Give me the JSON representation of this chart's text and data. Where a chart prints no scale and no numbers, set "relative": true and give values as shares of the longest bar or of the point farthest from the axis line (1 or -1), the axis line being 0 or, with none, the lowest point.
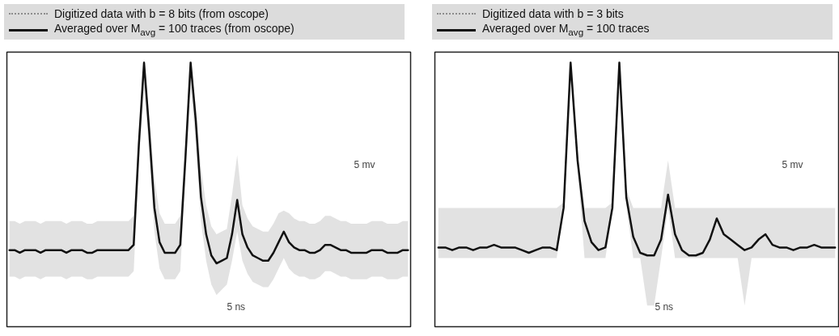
{
  "chart_data": [
    {
      "type": "line",
      "relative": true,
      "legend": "top",
      "grid": false,
      "categories": [
        null,
        null,
        null,
        null,
        null,
        null,
        null,
        null,
        null,
        null,
        null,
        null,
        null,
        null,
        null,
        null,
        null,
        null,
        null,
        null,
        null,
        null,
        null,
        null,
        null,
        null,
        null,
        null,
        null,
        null,
        null,
        null,
        null,
        null,
        null,
        null,
        null,
        null,
        null,
        null,
        null,
        null,
        null,
        null,
        null,
        null,
        null,
        null,
        null,
        null,
        null,
        null,
        null,
        null,
        null,
        null,
        null,
        null,
        null,
        null,
        null,
        null,
        null,
        null,
        null,
        null,
        null,
        null,
        null,
        null,
        null,
        null,
        null,
        null,
        null,
        null,
        null,
        null
      ],
      "annotations": [
        "5 mv",
        "5 ns"
      ],
      "series": [
        {
          "name": "Digitized data with b = 8 bits (from oscope)",
          "color": "#8c8c8c",
          "line_style": "dotted",
          "values": [
            null,
            null,
            null,
            null,
            null,
            null,
            null,
            null,
            null,
            null,
            null,
            null,
            null,
            null,
            null,
            null,
            null,
            null,
            null,
            null,
            null,
            null,
            null,
            null,
            null,
            null,
            null,
            null,
            null,
            null,
            null,
            null,
            null,
            null,
            null,
            null,
            null,
            null,
            null,
            null,
            null,
            null,
            null,
            null,
            null,
            null,
            null,
            null,
            null,
            null,
            null,
            null,
            null,
            null,
            null,
            null,
            null,
            null,
            null,
            null,
            null,
            null,
            null,
            null,
            null,
            null,
            null,
            null,
            null,
            null,
            null,
            null,
            null,
            null,
            null,
            null,
            null,
            null
          ],
          "lower": [
            0.19,
            0.19,
            0.18,
            0.19,
            0.19,
            0.19,
            0.18,
            0.19,
            0.19,
            0.19,
            0.19,
            0.18,
            0.19,
            0.19,
            0.19,
            0.18,
            0.18,
            0.19,
            0.19,
            0.19,
            0.19,
            0.19,
            0.19,
            0.19,
            0.21,
            0.62,
            0.9,
            0.66,
            0.36,
            0.22,
            0.18,
            0.18,
            0.18,
            0.21,
            0.57,
            0.9,
            0.7,
            0.4,
            0.25,
            0.16,
            0.12,
            0.14,
            0.16,
            0.25,
            0.36,
            0.25,
            0.2,
            0.17,
            0.16,
            0.15,
            0.15,
            0.18,
            0.22,
            0.26,
            0.22,
            0.2,
            0.19,
            0.19,
            0.18,
            0.18,
            0.19,
            0.21,
            0.21,
            0.2,
            0.19,
            0.19,
            0.18,
            0.18,
            0.18,
            0.18,
            0.19,
            0.19,
            0.19,
            0.18,
            0.18,
            0.18,
            0.19,
            0.19
          ],
          "upper": [
            0.4,
            0.4,
            0.39,
            0.4,
            0.4,
            0.4,
            0.39,
            0.4,
            0.4,
            0.4,
            0.4,
            0.39,
            0.4,
            0.4,
            0.4,
            0.39,
            0.39,
            0.4,
            0.4,
            0.4,
            0.4,
            0.4,
            0.4,
            0.4,
            0.42,
            0.74,
            1.0,
            0.8,
            0.56,
            0.43,
            0.39,
            0.39,
            0.39,
            0.42,
            0.7,
            1.0,
            0.84,
            0.6,
            0.46,
            0.38,
            0.35,
            0.36,
            0.37,
            0.5,
            0.65,
            0.46,
            0.41,
            0.38,
            0.37,
            0.36,
            0.36,
            0.39,
            0.43,
            0.44,
            0.43,
            0.41,
            0.4,
            0.4,
            0.39,
            0.39,
            0.4,
            0.42,
            0.42,
            0.41,
            0.4,
            0.4,
            0.39,
            0.39,
            0.39,
            0.39,
            0.4,
            0.4,
            0.4,
            0.39,
            0.39,
            0.39,
            0.4,
            0.4
          ]
        },
        {
          "name": "Averaged over M$_{avg}$ = 100 traces (from oscope)",
          "color": "#111111",
          "line_style": "solid",
          "values": [
            0.29,
            0.29,
            0.28,
            0.29,
            0.29,
            0.29,
            0.28,
            0.29,
            0.29,
            0.29,
            0.29,
            0.28,
            0.29,
            0.29,
            0.29,
            0.28,
            0.28,
            0.29,
            0.29,
            0.29,
            0.29,
            0.29,
            0.29,
            0.29,
            0.31,
            0.69,
            1.0,
            0.74,
            0.45,
            0.32,
            0.28,
            0.28,
            0.28,
            0.31,
            0.64,
            1.0,
            0.78,
            0.49,
            0.35,
            0.27,
            0.24,
            0.25,
            0.26,
            0.35,
            0.48,
            0.35,
            0.3,
            0.27,
            0.26,
            0.25,
            0.25,
            0.28,
            0.32,
            0.36,
            0.32,
            0.3,
            0.29,
            0.29,
            0.28,
            0.28,
            0.29,
            0.31,
            0.31,
            0.3,
            0.29,
            0.29,
            0.28,
            0.28,
            0.28,
            0.28,
            0.29,
            0.29,
            0.29,
            0.28,
            0.28,
            0.28,
            0.29,
            0.29
          ]
        }
      ]
    },
    {
      "type": "line",
      "relative": true,
      "legend": "top",
      "grid": false,
      "categories": [
        null,
        null,
        null,
        null,
        null,
        null,
        null,
        null,
        null,
        null,
        null,
        null,
        null,
        null,
        null,
        null,
        null,
        null,
        null,
        null,
        null,
        null,
        null,
        null,
        null,
        null,
        null,
        null,
        null,
        null,
        null,
        null,
        null,
        null,
        null,
        null,
        null,
        null,
        null,
        null,
        null,
        null,
        null,
        null,
        null,
        null,
        null,
        null,
        null,
        null,
        null,
        null,
        null,
        null,
        null,
        null,
        null,
        null
      ],
      "annotations": [
        "5 mv",
        "5 ns"
      ],
      "series": [
        {
          "name": "Digitized data with b = 3 bits",
          "color": "#8c8c8c",
          "line_style": "dotted",
          "values": [
            null,
            null,
            null,
            null,
            null,
            null,
            null,
            null,
            null,
            null,
            null,
            null,
            null,
            null,
            null,
            null,
            null,
            null,
            null,
            null,
            null,
            null,
            null,
            null,
            null,
            null,
            null,
            null,
            null,
            null,
            null,
            null,
            null,
            null,
            null,
            null,
            null,
            null,
            null,
            null,
            null,
            null,
            null,
            null,
            null,
            null,
            null,
            null,
            null,
            null,
            null,
            null,
            null,
            null,
            null,
            null,
            null,
            null
          ],
          "lower": [
            0.26,
            0.26,
            0.26,
            0.26,
            0.26,
            0.26,
            0.26,
            0.26,
            0.26,
            0.26,
            0.26,
            0.26,
            0.26,
            0.26,
            0.26,
            0.26,
            0.26,
            0.26,
            0.44,
            0.96,
            0.6,
            0.26,
            0.26,
            0.26,
            0.26,
            0.44,
            0.96,
            0.46,
            0.26,
            0.26,
            0.08,
            0.08,
            0.26,
            0.45,
            0.26,
            0.26,
            0.26,
            0.26,
            0.26,
            0.26,
            0.26,
            0.26,
            0.26,
            0.26,
            0.08,
            0.26,
            0.26,
            0.26,
            0.26,
            0.26,
            0.26,
            0.26,
            0.26,
            0.26,
            0.26,
            0.26,
            0.26,
            0.26
          ],
          "upper": [
            0.45,
            0.45,
            0.45,
            0.45,
            0.45,
            0.45,
            0.45,
            0.45,
            0.45,
            0.45,
            0.45,
            0.45,
            0.45,
            0.45,
            0.45,
            0.45,
            0.45,
            0.45,
            0.47,
            1.0,
            0.66,
            0.45,
            0.45,
            0.45,
            0.45,
            0.47,
            1.0,
            0.52,
            0.45,
            0.45,
            0.45,
            0.45,
            0.45,
            0.63,
            0.45,
            0.45,
            0.45,
            0.45,
            0.45,
            0.45,
            0.45,
            0.45,
            0.45,
            0.45,
            0.45,
            0.45,
            0.45,
            0.45,
            0.45,
            0.45,
            0.45,
            0.45,
            0.45,
            0.45,
            0.45,
            0.45,
            0.45,
            0.45
          ]
        },
        {
          "name": "Averaged over M$_{avg}$ = 100 traces",
          "color": "#111111",
          "line_style": "solid",
          "values": [
            0.3,
            0.3,
            0.29,
            0.3,
            0.3,
            0.29,
            0.3,
            0.3,
            0.31,
            0.3,
            0.3,
            0.3,
            0.29,
            0.28,
            0.29,
            0.3,
            0.3,
            0.29,
            0.45,
            1.0,
            0.63,
            0.4,
            0.32,
            0.29,
            0.3,
            0.45,
            1.0,
            0.49,
            0.34,
            0.28,
            0.27,
            0.27,
            0.33,
            0.5,
            0.35,
            0.29,
            0.27,
            0.27,
            0.28,
            0.33,
            0.41,
            0.35,
            0.33,
            0.31,
            0.29,
            0.3,
            0.33,
            0.35,
            0.31,
            0.3,
            0.3,
            0.29,
            0.3,
            0.3,
            0.31,
            0.3,
            0.3,
            0.3
          ]
        }
      ]
    }
  ]
}
